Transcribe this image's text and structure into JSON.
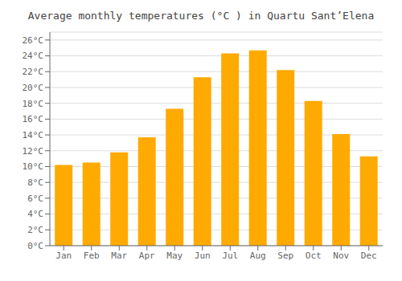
{
  "chart_data": {
    "type": "bar",
    "title": "Average monthly temperatures (°C ) in Quartu Sant’Elena",
    "categories": [
      "Jan",
      "Feb",
      "Mar",
      "Apr",
      "May",
      "Jun",
      "Jul",
      "Aug",
      "Sep",
      "Oct",
      "Nov",
      "Dec"
    ],
    "values": [
      10.2,
      10.5,
      11.8,
      13.7,
      17.3,
      21.3,
      24.3,
      24.7,
      22.2,
      18.3,
      14.1,
      11.3
    ],
    "color": "#FFAA00",
    "ylim": [
      0,
      27
    ],
    "yticks": [
      {
        "value": 0,
        "label": "0°C"
      },
      {
        "value": 2,
        "label": "2°C"
      },
      {
        "value": 4,
        "label": "4°C"
      },
      {
        "value": 6,
        "label": "6°C"
      },
      {
        "value": 8,
        "label": "8°C"
      },
      {
        "value": 10,
        "label": "10°C"
      },
      {
        "value": 12,
        "label": "12°C"
      },
      {
        "value": 14,
        "label": "14°C"
      },
      {
        "value": 16,
        "label": "16°C"
      },
      {
        "value": 18,
        "label": "18°C"
      },
      {
        "value": 20,
        "label": "20°C"
      },
      {
        "value": 22,
        "label": "22°C"
      },
      {
        "value": 24,
        "label": "24°C"
      },
      {
        "value": 26,
        "label": "26°C"
      }
    ],
    "grid": true
  }
}
